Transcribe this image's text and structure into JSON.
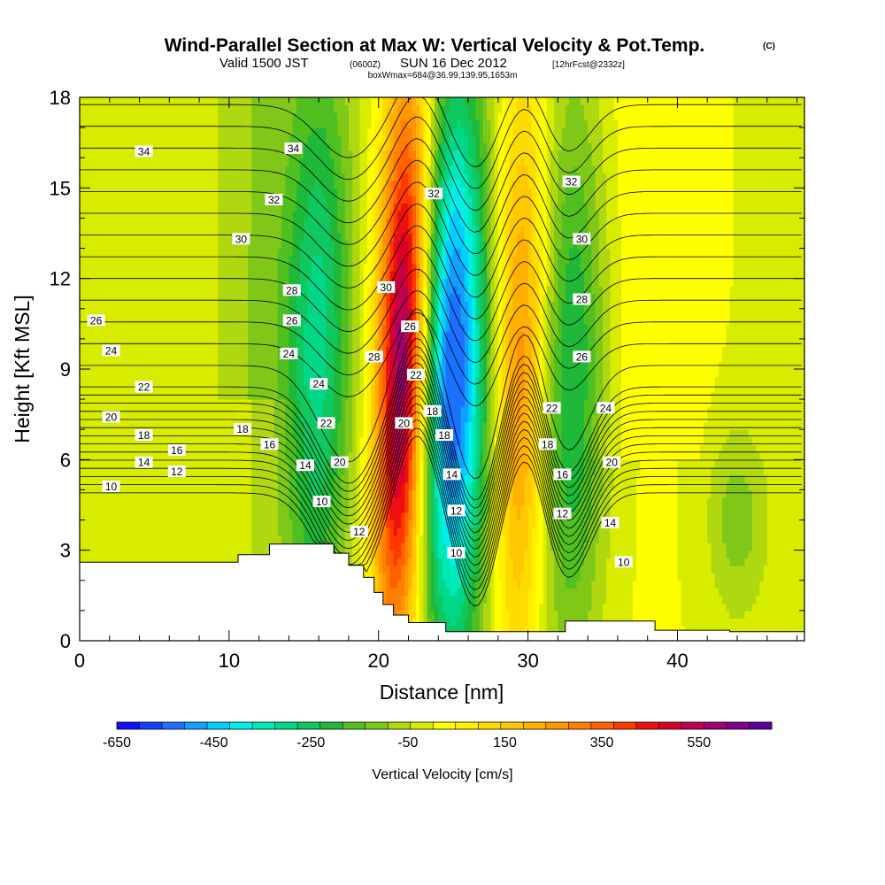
{
  "header": {
    "title": "Wind-Parallel Section at Max W: Vertical Velocity & Pot.Temp.",
    "copyright": "(C)",
    "valid_a": "Valid 1500 JST",
    "valid_b": "(0600Z)",
    "valid_c": "SUN 16 Dec 2012",
    "valid_d": "[12hrFcst@2332z]",
    "box": "boxWmax=684@36.99,139.95,1653m"
  },
  "chart_data": {
    "type": "heatmap",
    "title": "Wind-Parallel Section at Max W: Vertical Velocity & Pot.Temp.",
    "xlabel": "Distance [nm]",
    "ylabel": "Height [Kft MSL]",
    "xlim": [
      0,
      48.5
    ],
    "ylim": [
      0,
      18
    ],
    "x_ticks": [
      "0",
      "10",
      "20",
      "30",
      "40"
    ],
    "y_ticks": [
      "0",
      "3",
      "6",
      "9",
      "12",
      "15",
      "18"
    ],
    "colorbar": {
      "label": "Vertical Velocity [cm/s]",
      "tick_labels": [
        "-650",
        "-450",
        "-250",
        "-50",
        "150",
        "350",
        "550"
      ],
      "range": [
        -650,
        700
      ],
      "step": 50,
      "colors": [
        "#1010ff",
        "#1540ff",
        "#1a70ff",
        "#10a0ff",
        "#00d0ff",
        "#00f0e8",
        "#00e8b8",
        "#00d888",
        "#10c860",
        "#20b838",
        "#50c020",
        "#80c818",
        "#b0d810",
        "#d8ec00",
        "#ffff00",
        "#fff000",
        "#ffdc00",
        "#ffc800",
        "#ffb000",
        "#ff9800",
        "#ff8000",
        "#ff6000",
        "#ff3800",
        "#ee1010",
        "#d80028",
        "#c00050",
        "#a00070",
        "#800090",
        "#5a00a0"
      ]
    },
    "velocity_features": [
      {
        "kind": "updraft",
        "x": 21.6,
        "z_min": 2.0,
        "z_max": 18,
        "peak_cm_s": 684,
        "location": "box max at 1653 m"
      },
      {
        "kind": "downdraft",
        "x": 25.0,
        "z_min": 1.5,
        "z_max": 18,
        "min_cm_s": -600
      },
      {
        "kind": "updraft",
        "x": 29.5,
        "z_min": 1.5,
        "z_max": 18,
        "peak_cm_s": 300
      },
      {
        "kind": "downdraft",
        "x": 16.0,
        "z_min": 3.0,
        "z_max": 18,
        "min_cm_s": -300
      },
      {
        "kind": "downdraft",
        "x": 33.0,
        "z_min": 1.5,
        "z_max": 18,
        "min_cm_s": -250
      }
    ],
    "isentrope_labels": [
      {
        "text": "34",
        "x": 4.3,
        "z": 16.2
      },
      {
        "text": "34",
        "x": 14.3,
        "z": 16.3
      },
      {
        "text": "32",
        "x": 13.0,
        "z": 14.6
      },
      {
        "text": "32",
        "x": 23.7,
        "z": 14.8
      },
      {
        "text": "32",
        "x": 32.9,
        "z": 15.2
      },
      {
        "text": "30",
        "x": 10.8,
        "z": 13.3
      },
      {
        "text": "30",
        "x": 20.5,
        "z": 11.7
      },
      {
        "text": "30",
        "x": 33.6,
        "z": 13.3
      },
      {
        "text": "28",
        "x": 14.2,
        "z": 11.6
      },
      {
        "text": "28",
        "x": 19.7,
        "z": 9.4
      },
      {
        "text": "28",
        "x": 33.6,
        "z": 11.3
      },
      {
        "text": "26",
        "x": 1.1,
        "z": 10.6
      },
      {
        "text": "26",
        "x": 14.2,
        "z": 10.6
      },
      {
        "text": "26",
        "x": 22.1,
        "z": 10.4
      },
      {
        "text": "26",
        "x": 33.6,
        "z": 9.4
      },
      {
        "text": "24",
        "x": 2.1,
        "z": 9.6
      },
      {
        "text": "24",
        "x": 14.0,
        "z": 9.5
      },
      {
        "text": "24",
        "x": 16.0,
        "z": 8.5
      },
      {
        "text": "24",
        "x": 35.2,
        "z": 7.7
      },
      {
        "text": "22",
        "x": 4.3,
        "z": 8.4
      },
      {
        "text": "22",
        "x": 22.5,
        "z": 8.8
      },
      {
        "text": "22",
        "x": 16.5,
        "z": 7.2
      },
      {
        "text": "22",
        "x": 31.6,
        "z": 7.7
      },
      {
        "text": "20",
        "x": 2.1,
        "z": 7.4
      },
      {
        "text": "20",
        "x": 21.7,
        "z": 7.2
      },
      {
        "text": "20",
        "x": 17.4,
        "z": 5.9
      },
      {
        "text": "20",
        "x": 35.6,
        "z": 5.9
      },
      {
        "text": "18",
        "x": 4.3,
        "z": 6.8
      },
      {
        "text": "18",
        "x": 10.9,
        "z": 7.0
      },
      {
        "text": "18",
        "x": 23.6,
        "z": 7.6
      },
      {
        "text": "18",
        "x": 24.4,
        "z": 6.8
      },
      {
        "text": "18",
        "x": 31.3,
        "z": 6.5
      },
      {
        "text": "16",
        "x": 6.5,
        "z": 6.3
      },
      {
        "text": "16",
        "x": 12.7,
        "z": 6.5
      },
      {
        "text": "16",
        "x": 32.3,
        "z": 5.5
      },
      {
        "text": "14",
        "x": 4.3,
        "z": 5.9
      },
      {
        "text": "14",
        "x": 15.1,
        "z": 5.8
      },
      {
        "text": "14",
        "x": 24.9,
        "z": 5.5
      },
      {
        "text": "14",
        "x": 35.5,
        "z": 3.9
      },
      {
        "text": "12",
        "x": 6.5,
        "z": 5.6
      },
      {
        "text": "12",
        "x": 18.7,
        "z": 3.6
      },
      {
        "text": "12",
        "x": 25.2,
        "z": 4.3
      },
      {
        "text": "12",
        "x": 32.3,
        "z": 4.2
      },
      {
        "text": "10",
        "x": 2.1,
        "z": 5.1
      },
      {
        "text": "10",
        "x": 16.2,
        "z": 4.6
      },
      {
        "text": "10",
        "x": 25.2,
        "z": 2.9
      },
      {
        "text": "10",
        "x": 36.4,
        "z": 2.6
      }
    ],
    "terrain": [
      [
        0,
        2.6
      ],
      [
        10.6,
        2.6
      ],
      [
        10.6,
        2.85
      ],
      [
        12.7,
        2.85
      ],
      [
        12.7,
        3.2
      ],
      [
        17.0,
        3.2
      ],
      [
        17.0,
        2.9
      ],
      [
        18.0,
        2.9
      ],
      [
        18.0,
        2.5
      ],
      [
        19.0,
        2.5
      ],
      [
        19.0,
        2.1
      ],
      [
        19.7,
        2.1
      ],
      [
        19.7,
        1.6
      ],
      [
        20.3,
        1.6
      ],
      [
        20.3,
        1.2
      ],
      [
        21.0,
        1.2
      ],
      [
        21.0,
        0.85
      ],
      [
        22.0,
        0.85
      ],
      [
        22.0,
        0.6
      ],
      [
        24.5,
        0.6
      ],
      [
        24.5,
        0.3
      ],
      [
        32.5,
        0.3
      ],
      [
        32.5,
        0.65
      ],
      [
        38.5,
        0.65
      ],
      [
        38.5,
        0.35
      ],
      [
        43.5,
        0.35
      ],
      [
        43.5,
        0.3
      ],
      [
        48.5,
        0.3
      ]
    ]
  }
}
